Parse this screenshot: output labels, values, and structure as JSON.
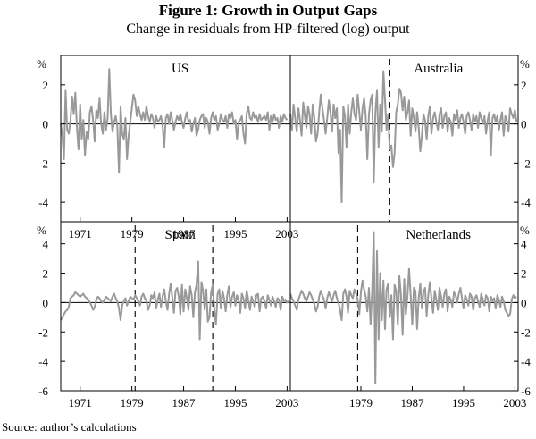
{
  "figure": {
    "title": "Figure 1: Growth in Output Gaps",
    "subtitle": "Change in residuals from HP-filtered (log) output",
    "source": "Source: author’s calculations"
  },
  "colors": {
    "series": "#999999",
    "frame": "#000000",
    "zero_line": "#000000",
    "break_line": "#000000"
  },
  "chart_data": [
    {
      "type": "line",
      "title": "US",
      "unit_label": "%",
      "ylim": [
        -5,
        3.5
      ],
      "yticks": [
        2,
        0,
        -2,
        -4
      ],
      "xlim": [
        1968,
        2003.5
      ],
      "xticks": [
        1971,
        1979,
        1987,
        1995,
        2003
      ],
      "breaks": [],
      "x_start": 1968.0,
      "step": 0.25,
      "values": [
        0.0,
        -0.6,
        -1.8,
        1.7,
        -0.3,
        -0.5,
        0.2,
        1.4,
        0.5,
        1.6,
        -0.2,
        -1.3,
        1.0,
        -0.8,
        0.2,
        -1.6,
        -0.4,
        -0.8,
        0.6,
        0.9,
        0.2,
        -0.9,
        0.7,
        0.3,
        1.3,
        0.0,
        -0.5,
        0.6,
        -0.3,
        0.3,
        2.8,
        0.5,
        -0.4,
        0.1,
        0.4,
        -0.1,
        -2.5,
        0.9,
        -0.5,
        -0.8,
        0.3,
        -1.8,
        -0.6,
        0.1,
        0.8,
        1.5,
        1.2,
        0.4,
        0.9,
        0.5,
        0.2,
        0.6,
        0.2,
        0.9,
        0.4,
        0.1,
        0.5,
        0.3,
        -0.2,
        0.4,
        0.1,
        0.2,
        0.4,
        -0.1,
        -1.2,
        0.3,
        0.5,
        0.0,
        0.6,
        0.2,
        -0.3,
        0.1,
        0.4,
        0.2,
        0.5,
        0.1,
        -0.2,
        0.3,
        0.6,
        0.1,
        0.2,
        -0.4,
        0.0,
        0.3,
        -0.6,
        -0.3,
        0.2,
        0.4,
        0.5,
        -0.2,
        0.3,
        0.1,
        -0.5,
        0.3,
        0.6,
        0.2,
        0.4,
        -0.3,
        0.0,
        0.5,
        0.2,
        0.1,
        0.4,
        -0.2,
        0.5,
        0.3,
        0.6,
        0.0,
        0.2,
        -0.8,
        0.1,
        0.2,
        0.4,
        -0.5,
        -1.0,
        0.5,
        0.9,
        0.3,
        0.2,
        0.6,
        0.3,
        0.4,
        0.1,
        0.5,
        0.2,
        0.3,
        0.4,
        0.2,
        0.6,
        -0.3,
        0.4,
        0.1,
        0.5,
        0.2,
        0.3,
        -0.2,
        0.4,
        0.1,
        0.5,
        0.3,
        0.2
      ]
    },
    {
      "type": "line",
      "title": "Australia",
      "unit_label": "%",
      "ylim": [
        -5,
        3.5
      ],
      "yticks": [
        2,
        0,
        -2,
        -4
      ],
      "xlim": [
        1968,
        2003.5
      ],
      "xticks": [],
      "breaks": [
        1983.5
      ],
      "x_start": 1968.0,
      "step": 0.25,
      "values": [
        0.5,
        -0.3,
        1.0,
        0.3,
        -0.4,
        0.8,
        0.2,
        -0.6,
        1.1,
        0.4,
        -0.2,
        0.9,
        0.5,
        -0.5,
        1.0,
        0.3,
        -0.9,
        -0.5,
        0.6,
        1.5,
        0.8,
        0.2,
        -0.5,
        0.3,
        1.2,
        0.6,
        -0.4,
        1.0,
        0.3,
        0.8,
        -1.5,
        -0.3,
        -4.0,
        0.9,
        0.4,
        -1.2,
        1.0,
        -0.5,
        0.6,
        1.3,
        0.5,
        0.2,
        1.5,
        0.6,
        -0.3,
        0.8,
        1.3,
        0.4,
        -1.8,
        0.5,
        1.2,
        1.5,
        -3.0,
        0.6,
        1.7,
        -1.2,
        1.0,
        -0.4,
        2.7,
        1.2,
        -0.3,
        0.5,
        -1.3,
        -1.1,
        -2.2,
        -1.5,
        0.6,
        1.0,
        1.8,
        1.6,
        0.7,
        1.4,
        0.2,
        0.6,
        1.2,
        -0.6,
        0.8,
        0.3,
        -0.4,
        0.6,
        -0.2,
        -1.4,
        -0.6,
        0.5,
        0.2,
        -0.8,
        0.4,
        0.9,
        -0.5,
        0.3,
        0.6,
        0.1,
        -0.3,
        0.5,
        0.8,
        -0.2,
        0.4,
        0.6,
        -0.4,
        0.3,
        0.1,
        -0.6,
        0.5,
        0.2,
        0.7,
        -0.2,
        0.3,
        0.5,
        0.1,
        -0.5,
        0.4,
        0.6,
        0.2,
        -0.3,
        0.5,
        0.1,
        0.4,
        -0.2,
        0.6,
        0.3,
        0.0,
        0.4,
        -0.5,
        0.2,
        0.6,
        -1.6,
        0.3,
        0.5,
        0.1,
        0.4,
        -0.3,
        0.2,
        0.6,
        -0.6,
        0.4,
        0.2,
        -0.4,
        0.8,
        0.5,
        0.3,
        0.7,
        0.1
      ]
    },
    {
      "type": "line",
      "title": "Spain",
      "unit_label": "%",
      "ylim": [
        -6,
        5.5
      ],
      "yticks": [
        4,
        2,
        0,
        -2,
        -4,
        -6
      ],
      "xlim": [
        1968,
        2003.5
      ],
      "xticks": [
        1971,
        1979,
        1987,
        1995,
        2003
      ],
      "breaks": [
        1979.5,
        1991.5
      ],
      "x_start": 1968.0,
      "step": 0.25,
      "values": [
        -1.2,
        -1.0,
        -0.8,
        -0.6,
        -0.5,
        -0.3,
        0.3,
        0.4,
        0.5,
        0.7,
        0.6,
        0.5,
        0.4,
        0.5,
        0.6,
        0.4,
        0.3,
        0.2,
        0.0,
        -0.2,
        -0.5,
        -0.3,
        0.2,
        0.4,
        0.3,
        0.1,
        0.0,
        0.2,
        0.4,
        0.3,
        0.2,
        0.1,
        0.4,
        0.6,
        0.3,
        0.1,
        -0.4,
        -1.2,
        -0.2,
        0.1,
        0.3,
        -0.2,
        0.1,
        0.4,
        0.3,
        0.2,
        0.5,
        0.3,
        0.1,
        -0.2,
        0.4,
        0.6,
        0.3,
        0.1,
        -0.5,
        -0.2,
        0.5,
        0.3,
        0.7,
        -0.4,
        0.2,
        0.6,
        -0.3,
        0.4,
        0.9,
        0.1,
        -0.5,
        0.6,
        1.3,
        0.3,
        -0.7,
        0.8,
        1.0,
        0.4,
        -0.8,
        1.2,
        -0.6,
        0.9,
        0.3,
        -0.5,
        1.1,
        0.5,
        -1.0,
        0.7,
        1.2,
        2.8,
        -2.5,
        1.4,
        0.8,
        -0.5,
        0.9,
        -1.3,
        -1.0,
        0.7,
        1.2,
        -0.5,
        -1.5,
        0.6,
        0.9,
        -0.4,
        0.8,
        0.3,
        -0.6,
        0.5,
        1.1,
        -0.3,
        0.4,
        0.7,
        -0.2,
        0.5,
        0.2,
        -0.7,
        0.6,
        0.3,
        -0.4,
        0.8,
        0.2,
        -0.5,
        0.4,
        0.1,
        -0.3,
        0.5,
        0.6,
        -0.6,
        0.3,
        0.4,
        0.1,
        -0.4,
        0.5,
        0.2,
        -0.2,
        0.4,
        0.1,
        -0.3,
        0.3,
        0.2,
        -0.5,
        0.4,
        0.1,
        0.2,
        0.0,
        0.1
      ]
    },
    {
      "type": "line",
      "title": "Netherlands",
      "unit_label": "%",
      "ylim": [
        -6,
        5.5
      ],
      "yticks": [
        4,
        2,
        0,
        -2,
        -4,
        -6
      ],
      "xlim": [
        1968,
        2003.5
      ],
      "xticks": [
        1979,
        1987,
        1995,
        2003
      ],
      "breaks": [
        1978.5
      ],
      "x_start": 1968.0,
      "step": 0.25,
      "values": [
        0.6,
        0.3,
        0.1,
        -0.2,
        -0.5,
        0.2,
        0.5,
        0.8,
        0.6,
        0.3,
        0.1,
        0.4,
        0.7,
        0.5,
        0.2,
        -0.1,
        -0.6,
        -0.3,
        0.4,
        0.8,
        0.5,
        0.2,
        -0.4,
        0.3,
        0.7,
        0.4,
        0.1,
        0.5,
        0.8,
        0.3,
        0.0,
        -0.5,
        -1.2,
        0.6,
        0.9,
        0.4,
        -0.7,
        0.8,
        0.5,
        0.3,
        0.9,
        0.6,
        0.2,
        -0.8,
        0.7,
        1.5,
        0.9,
        0.4,
        -0.6,
        1.0,
        -1.5,
        0.8,
        4.8,
        -5.5,
        3.5,
        -2.5,
        2.0,
        -1.2,
        1.5,
        -1.8,
        0.9,
        1.3,
        -1.0,
        0.5,
        -2.5,
        1.2,
        0.8,
        -1.5,
        1.8,
        0.5,
        -2.2,
        1.6,
        -0.8,
        0.4,
        2.3,
        0.5,
        -1.5,
        1.0,
        0.8,
        -1.8,
        0.3,
        1.3,
        -0.4,
        0.7,
        1.0,
        -0.9,
        0.5,
        1.4,
        0.3,
        -0.7,
        0.8,
        0.2,
        -0.5,
        1.0,
        0.4,
        -0.3,
        0.6,
        0.9,
        -0.6,
        0.4,
        0.2,
        -0.3,
        0.7,
        0.5,
        0.0,
        0.6,
        1.0,
        0.3,
        -0.4,
        0.5,
        0.2,
        -0.2,
        0.6,
        0.4,
        -0.5,
        0.3,
        0.5,
        0.1,
        -0.3,
        0.6,
        0.2,
        -0.2,
        0.5,
        0.3,
        -0.6,
        0.4,
        0.1,
        0.3,
        -0.4,
        0.5,
        0.2,
        -0.3,
        0.4,
        0.1,
        -0.5,
        -0.7,
        -0.9,
        -0.8,
        0.2,
        0.5,
        0.3,
        0.4
      ]
    }
  ]
}
